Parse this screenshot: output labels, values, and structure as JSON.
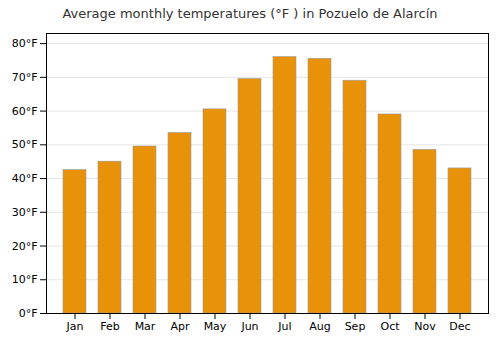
{
  "chart_data": {
    "type": "bar",
    "title": "Average monthly temperatures (°F ) in Pozuelo de Alarcín",
    "categories": [
      "Jan",
      "Feb",
      "Mar",
      "Apr",
      "May",
      "Jun",
      "Jul",
      "Aug",
      "Sep",
      "Oct",
      "Nov",
      "Dec"
    ],
    "values": [
      42.5,
      45.0,
      49.5,
      53.5,
      60.5,
      69.5,
      76.0,
      75.5,
      69.0,
      59.0,
      48.5,
      43.0
    ],
    "color": "#E8920A",
    "ylim": [
      0,
      83
    ],
    "yticks": [
      {
        "value": 0,
        "label": "0°F"
      },
      {
        "value": 10,
        "label": "10°F"
      },
      {
        "value": 20,
        "label": "20°F"
      },
      {
        "value": 30,
        "label": "30°F"
      },
      {
        "value": 40,
        "label": "40°F"
      },
      {
        "value": 50,
        "label": "50°F"
      },
      {
        "value": 60,
        "label": "60°F"
      },
      {
        "value": 70,
        "label": "70°F"
      },
      {
        "value": 80,
        "label": "80°F"
      }
    ],
    "grid": true
  }
}
